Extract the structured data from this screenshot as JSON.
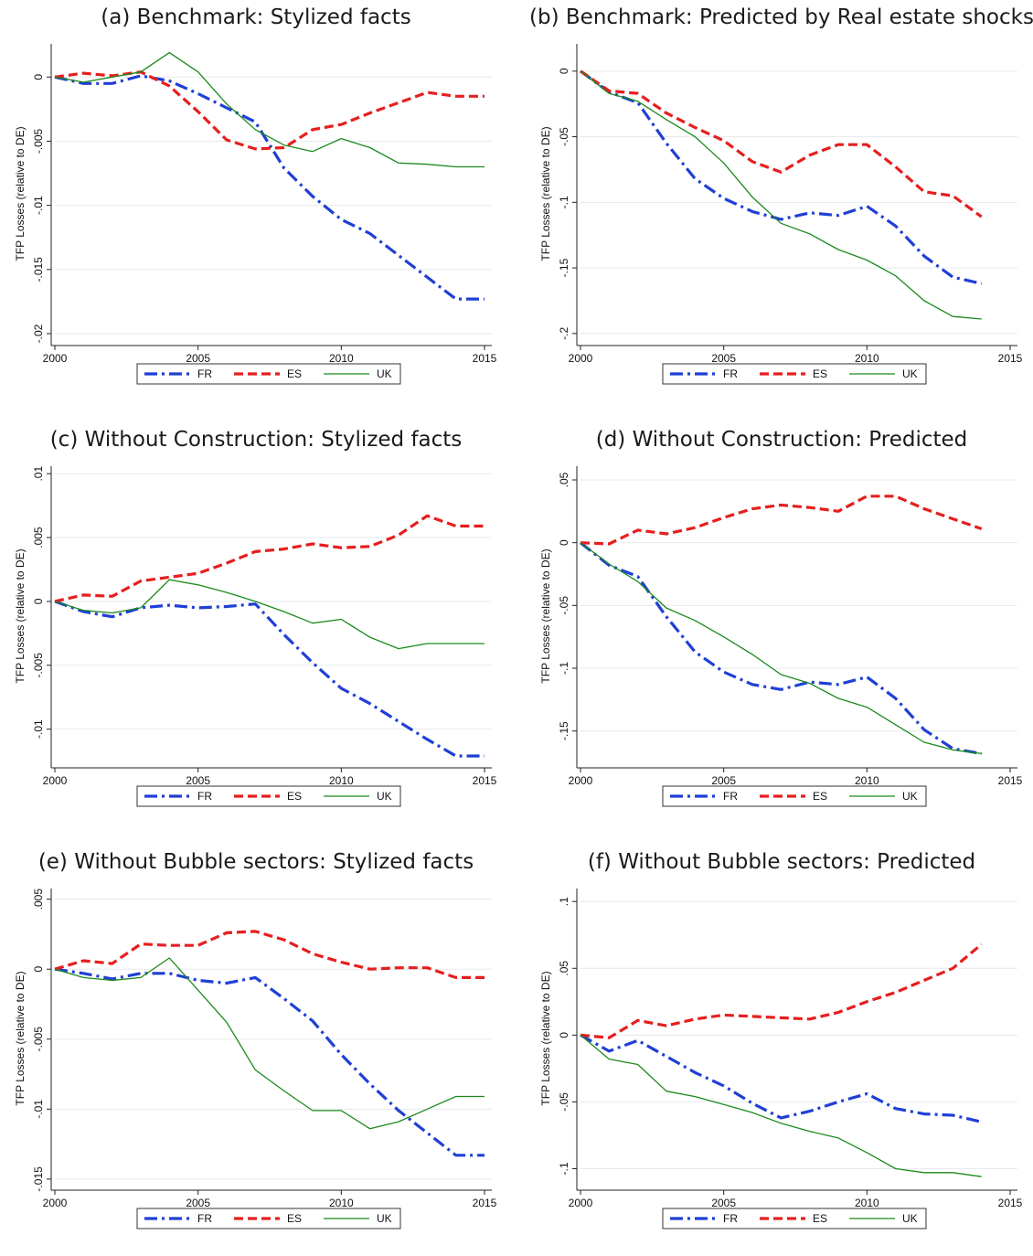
{
  "style": {
    "FR": "#1f3fd6",
    "ES": "#e61e1e",
    "UK": "#1b8a1b"
  },
  "chart_data": [
    {
      "id": "a",
      "type": "line",
      "title": "(a) Benchmark: Stylized facts",
      "ylabel": "TFP Losses (relative to DE)",
      "xlim": [
        2000,
        2015
      ],
      "ylim": [
        -0.0205,
        0.0023
      ],
      "xticks": [
        2000,
        2005,
        2010,
        2015
      ],
      "yticks": [
        0,
        -0.005,
        -0.01,
        -0.015,
        -0.02
      ],
      "ytick_labels": [
        "0",
        "-.005",
        "-.01",
        "-.015",
        "-.02"
      ],
      "x": [
        2000,
        2001,
        2002,
        2003,
        2004,
        2005,
        2006,
        2007,
        2008,
        2009,
        2010,
        2011,
        2012,
        2013,
        2014,
        2015
      ],
      "series": [
        {
          "name": "FR",
          "values": [
            0,
            -0.0005,
            -0.0005,
            0.0001,
            -0.0003,
            -0.0013,
            -0.0024,
            -0.0035,
            -0.0071,
            -0.0093,
            -0.0111,
            -0.0122,
            -0.0139,
            -0.0156,
            -0.0173,
            -0.0173
          ]
        },
        {
          "name": "ES",
          "values": [
            0,
            0.0003,
            0.0001,
            0.0004,
            -0.0007,
            -0.0027,
            -0.0049,
            -0.0056,
            -0.0055,
            -0.0041,
            -0.0037,
            -0.0028,
            -0.002,
            -0.0012,
            -0.0015,
            -0.0015
          ]
        },
        {
          "name": "UK",
          "values": [
            0,
            -0.0004,
            0,
            0.0004,
            0.0019,
            0.0004,
            -0.0021,
            -0.0041,
            -0.0053,
            -0.0058,
            -0.0048,
            -0.0055,
            -0.0067,
            -0.0068,
            -0.007,
            -0.007
          ]
        }
      ],
      "legend": [
        "FR",
        "ES",
        "UK"
      ]
    },
    {
      "id": "b",
      "type": "line",
      "title": "(b) Benchmark: Predicted by Real estate shocks",
      "ylabel": "TFP Losses (relative to DE)",
      "xlim": [
        2000,
        2015
      ],
      "ylim": [
        -0.205,
        0.018
      ],
      "xticks": [
        2000,
        2005,
        2010,
        2015
      ],
      "yticks": [
        0,
        -0.05,
        -0.1,
        -0.15,
        -0.2
      ],
      "ytick_labels": [
        "0",
        "-.05",
        "-.1",
        "-.15",
        "-.2"
      ],
      "x": [
        2000,
        2001,
        2002,
        2003,
        2004,
        2005,
        2006,
        2007,
        2008,
        2009,
        2010,
        2011,
        2012,
        2013,
        2014
      ],
      "series": [
        {
          "name": "FR",
          "values": [
            0,
            -0.016,
            -0.024,
            -0.055,
            -0.082,
            -0.097,
            -0.107,
            -0.113,
            -0.108,
            -0.11,
            -0.103,
            -0.118,
            -0.141,
            -0.157,
            -0.162
          ]
        },
        {
          "name": "ES",
          "values": [
            0,
            -0.015,
            -0.017,
            -0.032,
            -0.043,
            -0.053,
            -0.069,
            -0.077,
            -0.064,
            -0.056,
            -0.056,
            -0.073,
            -0.092,
            -0.095,
            -0.111
          ]
        },
        {
          "name": "UK",
          "values": [
            0,
            -0.017,
            -0.023,
            -0.037,
            -0.05,
            -0.07,
            -0.096,
            -0.116,
            -0.124,
            -0.136,
            -0.144,
            -0.156,
            -0.175,
            -0.187,
            -0.189
          ]
        }
      ],
      "legend": [
        "FR",
        "ES",
        "UK"
      ]
    },
    {
      "id": "c",
      "type": "line",
      "title": "(c) Without Construction: Stylized facts",
      "ylabel": "TFP Losses (relative to DE)",
      "xlim": [
        2000,
        2015
      ],
      "ylim": [
        -0.0126,
        0.0103
      ],
      "xticks": [
        2000,
        2005,
        2010,
        2015
      ],
      "yticks": [
        0.01,
        0.005,
        0,
        -0.005,
        -0.01
      ],
      "ytick_labels": [
        ".01",
        ".005",
        "0",
        "-.005",
        "-.01"
      ],
      "x": [
        2000,
        2001,
        2002,
        2003,
        2004,
        2005,
        2006,
        2007,
        2008,
        2009,
        2010,
        2011,
        2012,
        2013,
        2014,
        2015
      ],
      "series": [
        {
          "name": "FR",
          "values": [
            0,
            -0.0008,
            -0.0012,
            -0.0005,
            -0.0003,
            -0.0005,
            -0.0004,
            -0.0002,
            -0.0026,
            -0.0048,
            -0.0068,
            -0.008,
            -0.0094,
            -0.0108,
            -0.0121,
            -0.0121
          ]
        },
        {
          "name": "ES",
          "values": [
            0,
            0.0005,
            0.0004,
            0.0016,
            0.0019,
            0.0022,
            0.003,
            0.0039,
            0.0041,
            0.0045,
            0.0042,
            0.0043,
            0.0052,
            0.0067,
            0.0059,
            0.0059
          ]
        },
        {
          "name": "UK",
          "values": [
            0,
            -0.0007,
            -0.0009,
            -0.0005,
            0.0017,
            0.0013,
            0.0007,
            0,
            -0.0008,
            -0.0017,
            -0.0014,
            -0.0028,
            -0.0037,
            -0.0033,
            -0.0033,
            -0.0033
          ]
        }
      ],
      "legend": [
        "FR",
        "ES",
        "UK"
      ]
    },
    {
      "id": "d",
      "type": "line",
      "title": "(d) Without Construction: Predicted",
      "ylabel": "TFP Losses (relative to DE)",
      "xlim": [
        2000,
        2015
      ],
      "ylim": [
        -0.175,
        0.058
      ],
      "xticks": [
        2000,
        2005,
        2010,
        2015
      ],
      "yticks": [
        0.05,
        0,
        -0.05,
        -0.1,
        -0.15
      ],
      "ytick_labels": [
        ".05",
        "0",
        "-.05",
        "-.1",
        "-.15"
      ],
      "x": [
        2000,
        2001,
        2002,
        2003,
        2004,
        2005,
        2006,
        2007,
        2008,
        2009,
        2010,
        2011,
        2012,
        2013,
        2014
      ],
      "series": [
        {
          "name": "FR",
          "values": [
            0,
            -0.018,
            -0.027,
            -0.059,
            -0.087,
            -0.103,
            -0.113,
            -0.117,
            -0.111,
            -0.113,
            -0.107,
            -0.124,
            -0.149,
            -0.164,
            -0.168
          ]
        },
        {
          "name": "ES",
          "values": [
            0,
            -0.001,
            0.01,
            0.007,
            0.012,
            0.02,
            0.027,
            0.03,
            0.028,
            0.025,
            0.037,
            0.037,
            0.027,
            0.019,
            0.011
          ]
        },
        {
          "name": "UK",
          "values": [
            0,
            -0.017,
            -0.031,
            -0.052,
            -0.062,
            -0.075,
            -0.089,
            -0.105,
            -0.112,
            -0.124,
            -0.131,
            -0.145,
            -0.159,
            -0.165,
            -0.168
          ]
        }
      ],
      "legend": [
        "FR",
        "ES",
        "UK"
      ]
    },
    {
      "id": "e",
      "type": "line",
      "title": "(e) Without Bubble sectors: Stylized facts",
      "ylabel": "TFP Losses (relative to DE)",
      "xlim": [
        2000,
        2015
      ],
      "ylim": [
        -0.0154,
        0.0055
      ],
      "xticks": [
        2000,
        2005,
        2010,
        2015
      ],
      "yticks": [
        0.005,
        0,
        -0.005,
        -0.01,
        -0.015
      ],
      "ytick_labels": [
        ".005",
        "0",
        "-.005",
        "-.01",
        "-.015"
      ],
      "x": [
        2000,
        2001,
        2002,
        2003,
        2004,
        2005,
        2006,
        2007,
        2008,
        2009,
        2010,
        2011,
        2012,
        2013,
        2014,
        2015
      ],
      "series": [
        {
          "name": "FR",
          "values": [
            0,
            -0.0003,
            -0.0007,
            -0.0003,
            -0.0003,
            -0.0008,
            -0.001,
            -0.0006,
            -0.0021,
            -0.0037,
            -0.0061,
            -0.0082,
            -0.0101,
            -0.0117,
            -0.0133,
            -0.0133
          ]
        },
        {
          "name": "ES",
          "values": [
            0,
            0.0006,
            0.0004,
            0.0018,
            0.0017,
            0.0017,
            0.0026,
            0.0027,
            0.0021,
            0.0011,
            0.0005,
            0,
            0.0001,
            0.0001,
            -0.0006,
            -0.0006
          ]
        },
        {
          "name": "UK",
          "values": [
            0,
            -0.0006,
            -0.0008,
            -0.0006,
            0.0008,
            -0.0015,
            -0.0038,
            -0.0072,
            -0.0087,
            -0.0101,
            -0.0101,
            -0.0114,
            -0.0109,
            -0.01,
            -0.0091,
            -0.0091
          ]
        }
      ],
      "legend": [
        "FR",
        "ES",
        "UK"
      ]
    },
    {
      "id": "f",
      "type": "line",
      "title": "(f) Without Bubble sectors: Predicted",
      "ylabel": "TFP Losses (relative to DE)",
      "xlim": [
        2000,
        2015
      ],
      "ylim": [
        -0.112,
        0.107
      ],
      "xticks": [
        2000,
        2005,
        2010,
        2015
      ],
      "yticks": [
        0.1,
        0.05,
        0,
        -0.05,
        -0.1
      ],
      "ytick_labels": [
        ".1",
        ".05",
        "0",
        "-.05",
        "-.1"
      ],
      "x": [
        2000,
        2001,
        2002,
        2003,
        2004,
        2005,
        2006,
        2007,
        2008,
        2009,
        2010,
        2011,
        2012,
        2013,
        2014
      ],
      "series": [
        {
          "name": "FR",
          "values": [
            0,
            -0.012,
            -0.004,
            -0.016,
            -0.028,
            -0.038,
            -0.051,
            -0.062,
            -0.057,
            -0.05,
            -0.044,
            -0.055,
            -0.059,
            -0.06,
            -0.065
          ]
        },
        {
          "name": "ES",
          "values": [
            0,
            -0.002,
            0.011,
            0.007,
            0.012,
            0.015,
            0.014,
            0.013,
            0.012,
            0.017,
            0.025,
            0.032,
            0.041,
            0.05,
            0.068
          ]
        },
        {
          "name": "UK",
          "values": [
            0,
            -0.018,
            -0.022,
            -0.042,
            -0.046,
            -0.052,
            -0.058,
            -0.066,
            -0.072,
            -0.077,
            -0.088,
            -0.1,
            -0.103,
            -0.103,
            -0.106
          ]
        }
      ],
      "legend": [
        "FR",
        "ES",
        "UK"
      ]
    }
  ]
}
